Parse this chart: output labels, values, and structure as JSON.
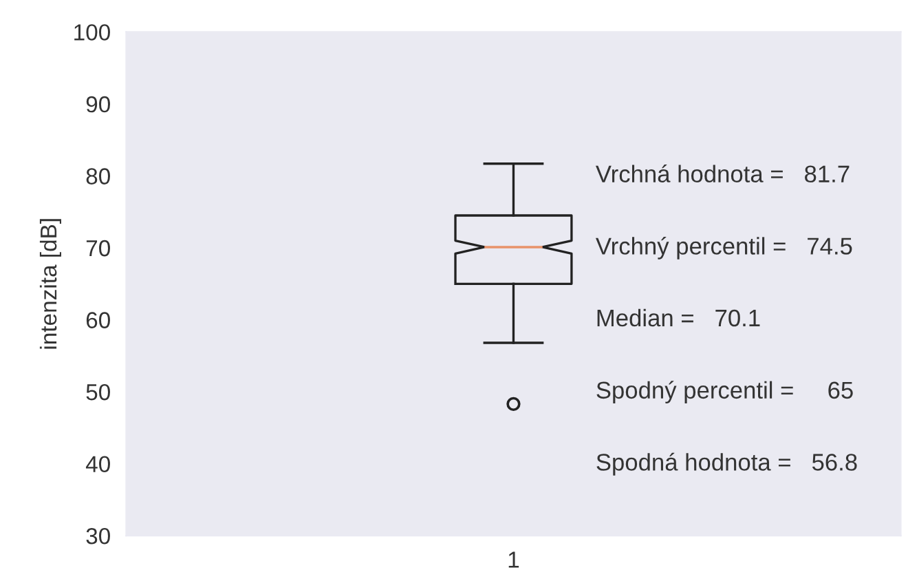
{
  "chart_data": {
    "type": "box",
    "ylabel": "intenzita [dB]",
    "categories": [
      "1"
    ],
    "boxes": [
      {
        "low": 56.8,
        "q1": 65,
        "median": 70.1,
        "q3": 74.5,
        "high": 81.7,
        "outliers": [
          48.3
        ]
      }
    ],
    "ylim": [
      30,
      100
    ],
    "yticks": [
      30,
      40,
      50,
      60,
      70,
      80,
      90,
      100
    ],
    "grid": false,
    "annotations": [
      "Vrchná hodnota =   81.7",
      "Vrchný percentil =   74.5",
      "Median =   70.1",
      "Spodný percentil =     65",
      "Spodná hodnota =   56.8"
    ]
  }
}
